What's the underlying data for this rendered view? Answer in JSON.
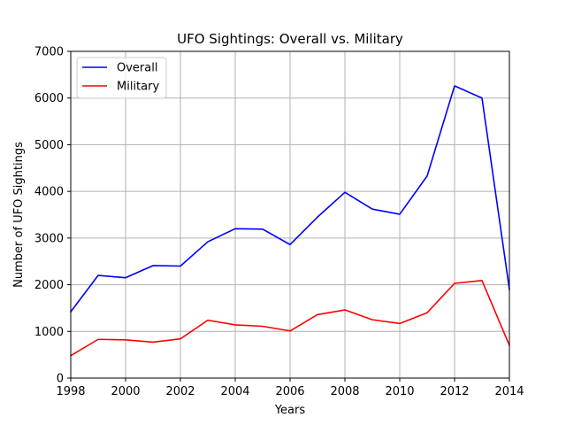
{
  "chart_data": {
    "type": "line",
    "title": "UFO Sightings: Overall vs. Military",
    "xlabel": "Years",
    "ylabel": "Number of UFO Sightings",
    "xlim": [
      1998,
      2014
    ],
    "ylim": [
      0,
      7000
    ],
    "xticks": [
      1998,
      2000,
      2002,
      2004,
      2006,
      2008,
      2010,
      2012,
      2014
    ],
    "yticks": [
      0,
      1000,
      2000,
      3000,
      4000,
      5000,
      6000,
      7000
    ],
    "grid": true,
    "legend_position": "top-left",
    "x": [
      1998,
      1999,
      2000,
      2001,
      2002,
      2003,
      2004,
      2005,
      2006,
      2007,
      2008,
      2009,
      2010,
      2011,
      2012,
      2013,
      2014
    ],
    "series": [
      {
        "name": "Overall",
        "color": "#0000ff",
        "values": [
          1420,
          2200,
          2150,
          2410,
          2400,
          2920,
          3200,
          3190,
          2860,
          3450,
          3980,
          3620,
          3510,
          4330,
          6260,
          6000,
          1900
        ]
      },
      {
        "name": "Military",
        "color": "#ff0000",
        "values": [
          480,
          830,
          820,
          770,
          840,
          1240,
          1140,
          1110,
          1010,
          1360,
          1460,
          1250,
          1170,
          1400,
          2030,
          2090,
          700
        ]
      }
    ]
  }
}
